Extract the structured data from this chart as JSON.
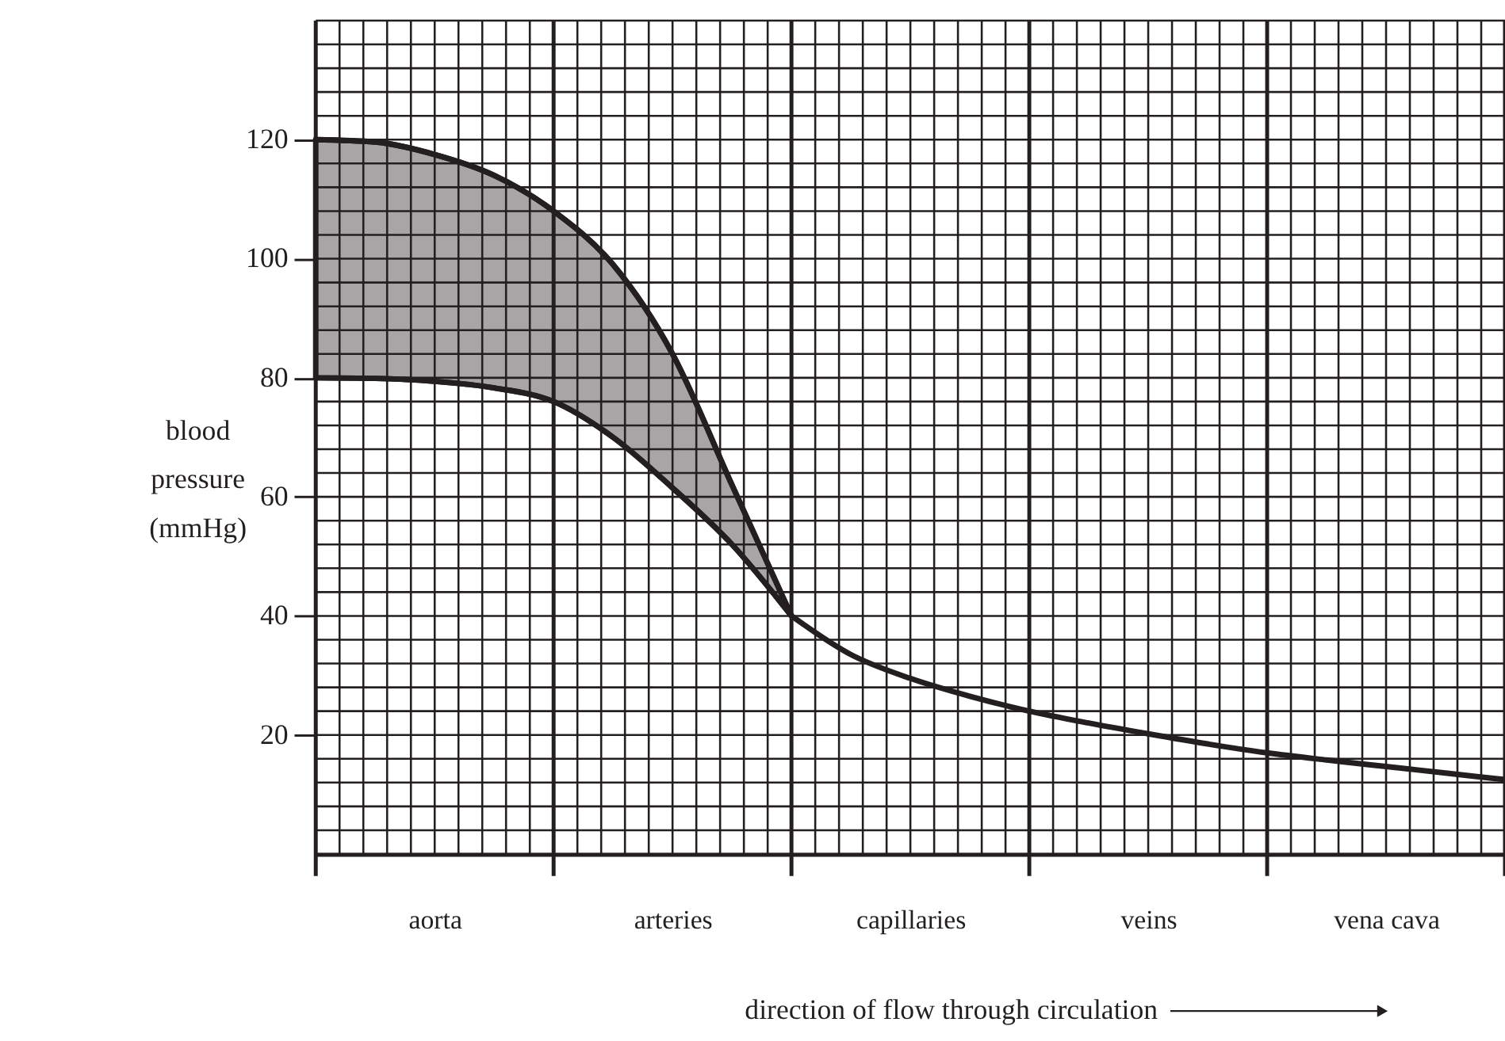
{
  "chart_data": {
    "type": "line",
    "xlabel": "direction of flow through circulation",
    "ylabel": "blood pressure (mmHg)",
    "categories": [
      null,
      null,
      "aorta",
      null,
      null,
      null,
      "arteries",
      null,
      null,
      null,
      "capillaries",
      null,
      null,
      null,
      "veins",
      null,
      null,
      null,
      "vena cava",
      null,
      null
    ],
    "ylim": [
      0,
      140
    ],
    "yticks": [
      20,
      40,
      60,
      80,
      100,
      120
    ],
    "grid": true,
    "series": [
      {
        "color": "#231f20",
        "values": [
          120,
          119.6,
          117.5,
          114,
          108,
          99,
          84,
          62,
          40,
          null,
          null,
          null,
          null,
          null,
          null,
          null,
          null,
          null,
          null,
          null,
          null
        ],
        "lower": [
          80,
          79.9,
          79.4,
          78.3,
          76,
          70,
          61.5,
          52,
          40,
          null,
          null,
          null,
          null,
          null,
          null,
          null,
          null,
          null,
          null,
          null,
          null
        ],
        "upper": [
          120,
          119.6,
          117.5,
          114,
          108,
          99,
          84,
          62,
          40,
          null,
          null,
          null,
          null,
          null,
          null,
          null,
          null,
          null,
          null,
          null,
          null
        ]
      },
      {
        "color": "#231f20",
        "values": [
          80,
          79.9,
          79.4,
          78.3,
          76,
          70,
          61.5,
          52,
          40,
          null,
          null,
          null,
          null,
          null,
          null,
          null,
          null,
          null,
          null,
          null,
          null
        ]
      },
      {
        "color": "#231f20",
        "values": [
          null,
          null,
          null,
          null,
          null,
          null,
          null,
          null,
          40,
          33.5,
          29.5,
          26.5,
          24,
          22,
          20.2,
          18.5,
          17,
          15.8,
          14.7,
          13.6,
          12.5
        ]
      }
    ]
  }
}
